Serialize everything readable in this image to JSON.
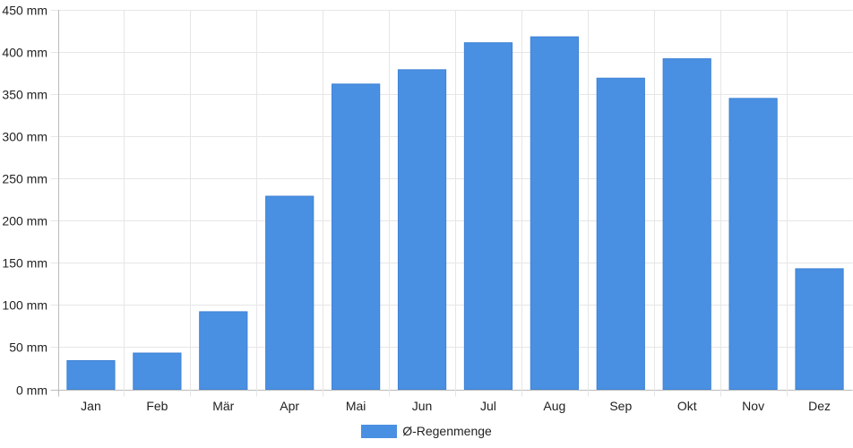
{
  "chart_data": {
    "type": "bar",
    "categories": [
      "Jan",
      "Feb",
      "Mär",
      "Apr",
      "Mai",
      "Jun",
      "Jul",
      "Aug",
      "Sep",
      "Okt",
      "Nov",
      "Dez"
    ],
    "series": [
      {
        "name": "Ø-Regenmenge",
        "values": [
          34,
          43,
          92,
          229,
          362,
          379,
          411,
          418,
          369,
          392,
          345,
          143
        ],
        "color": "#4a90e2"
      }
    ],
    "y_ticks": [
      "0 mm",
      "50 mm",
      "100 mm",
      "150 mm",
      "200 mm",
      "250 mm",
      "300 mm",
      "350 mm",
      "400 mm",
      "450 mm"
    ],
    "ylim": [
      0,
      450
    ],
    "y_step": 50,
    "grid": true,
    "legend_position": "bottom"
  }
}
